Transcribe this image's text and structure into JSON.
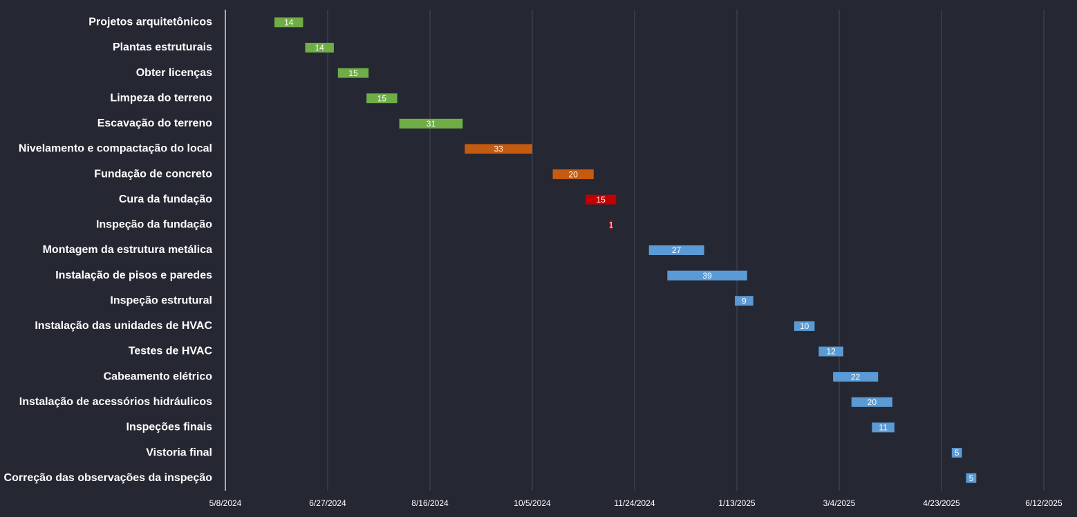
{
  "chart_data": {
    "type": "gantt",
    "categories": [
      "Projetos arquitetônicos",
      "Plantas estruturais",
      "Obter licenças",
      "Limpeza do terreno",
      "Escavação do terreno",
      "Nivelamento e compactação do local",
      "Fundação de concreto",
      "Cura da fundação",
      "Inspeção da fundação",
      "Montagem da estrutura metálica",
      "Instalação de pisos e paredes",
      "Inspeção estrutural",
      "Instalação das unidades de HVAC",
      "Testes de HVAC",
      "Cabeamento elétrico",
      "Instalação de acessórios hidráulicos",
      "Inspeções finais",
      "Vistoria final",
      "Correção das observações da inspeção"
    ],
    "starts": [
      "6/1/2024",
      "6/16/2024",
      "7/2/2024",
      "7/16/2024",
      "8/1/2024",
      "9/2/2024",
      "10/15/2024",
      "10/31/2024",
      "11/12/2024",
      "12/1/2024",
      "12/10/2024",
      "1/12/2025",
      "2/10/2025",
      "2/22/2025",
      "3/1/2025",
      "3/10/2025",
      "3/20/2025",
      "4/28/2025",
      "5/5/2025"
    ],
    "values": [
      14,
      14,
      15,
      15,
      31,
      33,
      20,
      15,
      1,
      27,
      39,
      9,
      10,
      12,
      22,
      20,
      11,
      5,
      5
    ],
    "colors": [
      "#70ad47",
      "#70ad47",
      "#70ad47",
      "#70ad47",
      "#70ad47",
      "#c55a11",
      "#c55a11",
      "#c00000",
      "#c00000",
      "#5b9bd5",
      "#5b9bd5",
      "#5b9bd5",
      "#5b9bd5",
      "#5b9bd5",
      "#5b9bd5",
      "#5b9bd5",
      "#5b9bd5",
      "#5b9bd5",
      "#5b9bd5"
    ],
    "xlim": [
      "5/8/2024",
      "6/12/2025"
    ],
    "xticks": [
      "5/8/2024",
      "6/27/2024",
      "8/16/2024",
      "10/5/2024",
      "11/24/2024",
      "1/13/2025",
      "3/4/2025",
      "4/23/2025",
      "6/12/2025"
    ],
    "grid": true
  }
}
